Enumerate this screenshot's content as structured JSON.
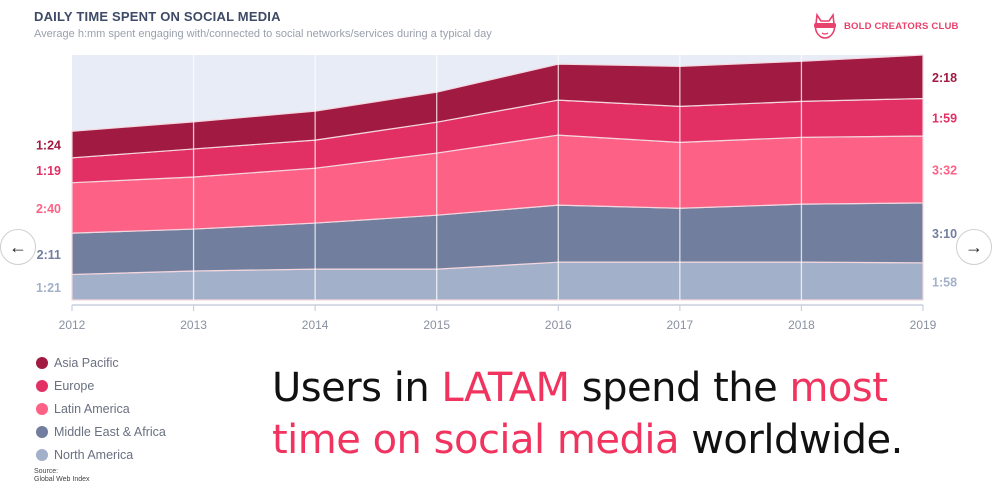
{
  "header": {
    "title": "DAILY TIME SPENT ON SOCIAL MEDIA",
    "subtitle": "Average h:mm spent engaging with/connected to social networks/services during a typical day",
    "brand": "BOLD CREATORS CLUB"
  },
  "navigation": {
    "prev_icon": "←",
    "next_icon": "→"
  },
  "headline": {
    "parts": [
      {
        "text": "Users in ",
        "highlight": false
      },
      {
        "text": "LATAM",
        "highlight": true
      },
      {
        "text": " spend the ",
        "highlight": false
      },
      {
        "text": "most",
        "highlight": true
      },
      {
        "text": "time on social media",
        "highlight": true
      },
      {
        "text": " worldwide.",
        "highlight": false
      }
    ],
    "line1": [
      "Users in ",
      "LATAM",
      " spend the ",
      "most"
    ],
    "line2": [
      "time on social media",
      " worldwide."
    ]
  },
  "source": {
    "label": "Source:",
    "name": "Global Web Index"
  },
  "colors": {
    "Asia Pacific": "#a11a42",
    "Europe": "#e23064",
    "Latin America": "#fd6286",
    "Middle East & Africa": "#717e9e",
    "North America": "#a2b0c9",
    "plot_background": "#e8ecf7",
    "highlight": "#f0345f"
  },
  "chart_data": {
    "type": "area",
    "stacked": true,
    "title": "DAILY TIME SPENT ON SOCIAL MEDIA",
    "subtitle": "Average h:mm spent engaging with/connected to social networks/services during a typical day",
    "xlabel": "",
    "ylabel": "",
    "unit": "minutes",
    "categories": [
      "2012",
      "2013",
      "2014",
      "2015",
      "2016",
      "2017",
      "2018",
      "2019"
    ],
    "ylim": [
      0,
      777
    ],
    "grid": true,
    "legend_position": "bottom-left",
    "series": [
      {
        "name": "North America",
        "values": [
          81,
          92,
          98,
          98,
          120,
          120,
          120,
          118
        ],
        "start_label": "1:21",
        "end_label": "1:58"
      },
      {
        "name": "Middle East & Africa",
        "values": [
          131,
          133,
          146,
          171,
          181,
          171,
          184,
          190
        ],
        "start_label": "2:11",
        "end_label": "3:10"
      },
      {
        "name": "Latin America",
        "values": [
          160,
          165,
          174,
          197,
          222,
          209,
          212,
          212
        ],
        "start_label": "2:40",
        "end_label": "3:32"
      },
      {
        "name": "Europe",
        "values": [
          79,
          89,
          89,
          98,
          111,
          114,
          114,
          119
        ],
        "start_label": "1:19",
        "end_label": "1:59"
      },
      {
        "name": "Asia Pacific",
        "values": [
          84,
          86,
          92,
          95,
          114,
          127,
          127,
          138
        ],
        "start_label": "1:24",
        "end_label": "2:18"
      }
    ],
    "legend": [
      "Asia Pacific",
      "Europe",
      "Latin America",
      "Middle East & Africa",
      "North America"
    ]
  }
}
